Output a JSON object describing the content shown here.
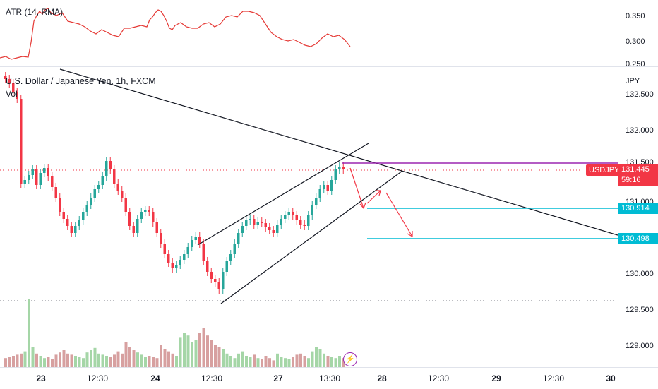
{
  "legend": {
    "indicator": "ATR (14, RMA)",
    "symbol_title": "U.S. Dollar / Japanese Yen, 1h, FXCM",
    "volume": "Vol"
  },
  "price_axis": {
    "indicator_ticks": [
      "0.350",
      "0.300",
      "0.250"
    ],
    "currency": "JPY",
    "main_ticks": [
      "132.500",
      "132.000",
      "131.500",
      "131.000",
      "130.000",
      "129.500",
      "129.000"
    ]
  },
  "time_axis": {
    "ticks": [
      {
        "label": "23",
        "bold": true
      },
      {
        "label": "12:30",
        "bold": false
      },
      {
        "label": "24",
        "bold": true
      },
      {
        "label": "12:30",
        "bold": false
      },
      {
        "label": "27",
        "bold": true
      },
      {
        "label": "13:30",
        "bold": false
      },
      {
        "label": "28",
        "bold": true
      },
      {
        "label": "12:30",
        "bold": false
      },
      {
        "label": "29",
        "bold": true
      },
      {
        "label": "12:30",
        "bold": false
      },
      {
        "label": "30",
        "bold": true
      }
    ]
  },
  "tags": {
    "symbol": "USDJPY",
    "current_price": "131.445",
    "countdown": "59:16",
    "level_1": "130.914",
    "level_2": "130.498"
  },
  "icons": {
    "flash": "⚡"
  },
  "colors": {
    "up": "#26a69a",
    "down": "#f23645",
    "atr": "#e53935",
    "cyan": "#00bcd4",
    "magenta": "#9c27b0",
    "trend": "#131722"
  }
}
